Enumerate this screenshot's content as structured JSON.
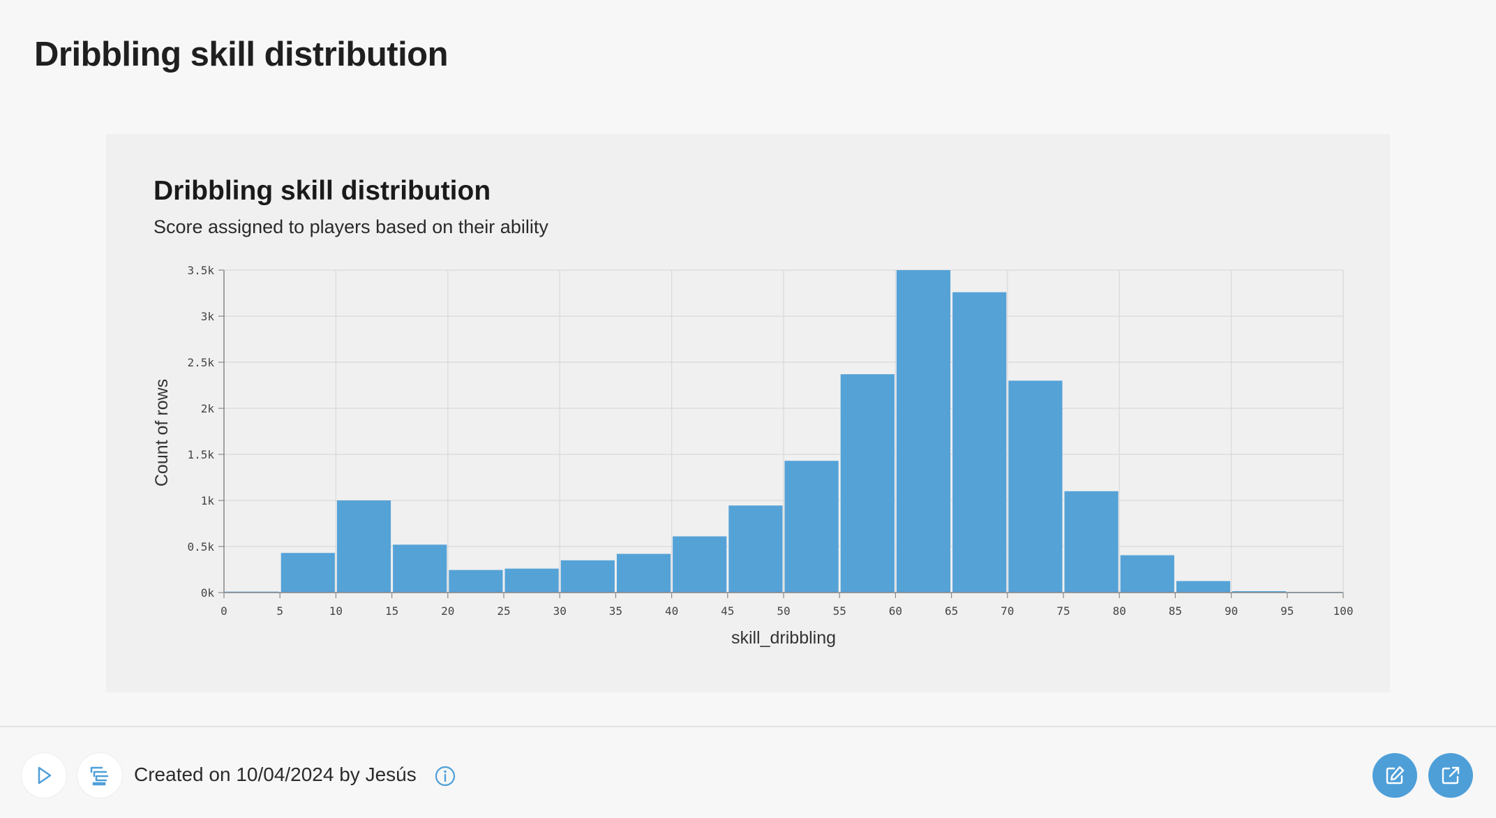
{
  "page": {
    "title": "Dribbling skill distribution"
  },
  "footer": {
    "created_text": "Created on 10/04/2024 by Jesús",
    "icons": {
      "run": "play-icon",
      "query": "query-icon",
      "info": "info-icon",
      "edit": "edit-icon",
      "open": "external-link-icon"
    },
    "accent_color": "#4e9fd8"
  },
  "chart_data": {
    "type": "bar",
    "title": "Dribbling skill distribution",
    "subtitle": "Score assigned to players based on their ability",
    "xlabel": "skill_dribbling",
    "ylabel": "Count of rows",
    "bar_color": "#55a2d7",
    "grid": true,
    "xlim": [
      0,
      100
    ],
    "ylim": [
      0,
      3500
    ],
    "x_ticks": [
      0,
      5,
      10,
      15,
      20,
      25,
      30,
      35,
      40,
      45,
      50,
      55,
      60,
      65,
      70,
      75,
      80,
      85,
      90,
      95,
      100
    ],
    "x_tick_labels": [
      "0",
      "5",
      "10",
      "15",
      "20",
      "25",
      "30",
      "35",
      "40",
      "45",
      "50",
      "55",
      "60",
      "65",
      "70",
      "75",
      "80",
      "85",
      "90",
      "95",
      "100"
    ],
    "y_ticks": [
      0,
      500,
      1000,
      1500,
      2000,
      2500,
      3000,
      3500
    ],
    "y_tick_labels": [
      "0k",
      "0.5k",
      "1k",
      "1.5k",
      "2k",
      "2.5k",
      "3k",
      "3.5k"
    ],
    "bins": [
      {
        "start": 0,
        "end": 5,
        "value": 10
      },
      {
        "start": 5,
        "end": 10,
        "value": 430
      },
      {
        "start": 10,
        "end": 15,
        "value": 1000
      },
      {
        "start": 15,
        "end": 20,
        "value": 520
      },
      {
        "start": 20,
        "end": 25,
        "value": 245
      },
      {
        "start": 25,
        "end": 30,
        "value": 260
      },
      {
        "start": 30,
        "end": 35,
        "value": 350
      },
      {
        "start": 35,
        "end": 40,
        "value": 420
      },
      {
        "start": 40,
        "end": 45,
        "value": 610
      },
      {
        "start": 45,
        "end": 50,
        "value": 945
      },
      {
        "start": 50,
        "end": 55,
        "value": 1430
      },
      {
        "start": 55,
        "end": 60,
        "value": 2370
      },
      {
        "start": 60,
        "end": 65,
        "value": 3500
      },
      {
        "start": 65,
        "end": 70,
        "value": 3260
      },
      {
        "start": 70,
        "end": 75,
        "value": 2300
      },
      {
        "start": 75,
        "end": 80,
        "value": 1100
      },
      {
        "start": 80,
        "end": 85,
        "value": 405
      },
      {
        "start": 85,
        "end": 90,
        "value": 125
      },
      {
        "start": 90,
        "end": 95,
        "value": 15
      },
      {
        "start": 95,
        "end": 100,
        "value": 5
      }
    ]
  }
}
